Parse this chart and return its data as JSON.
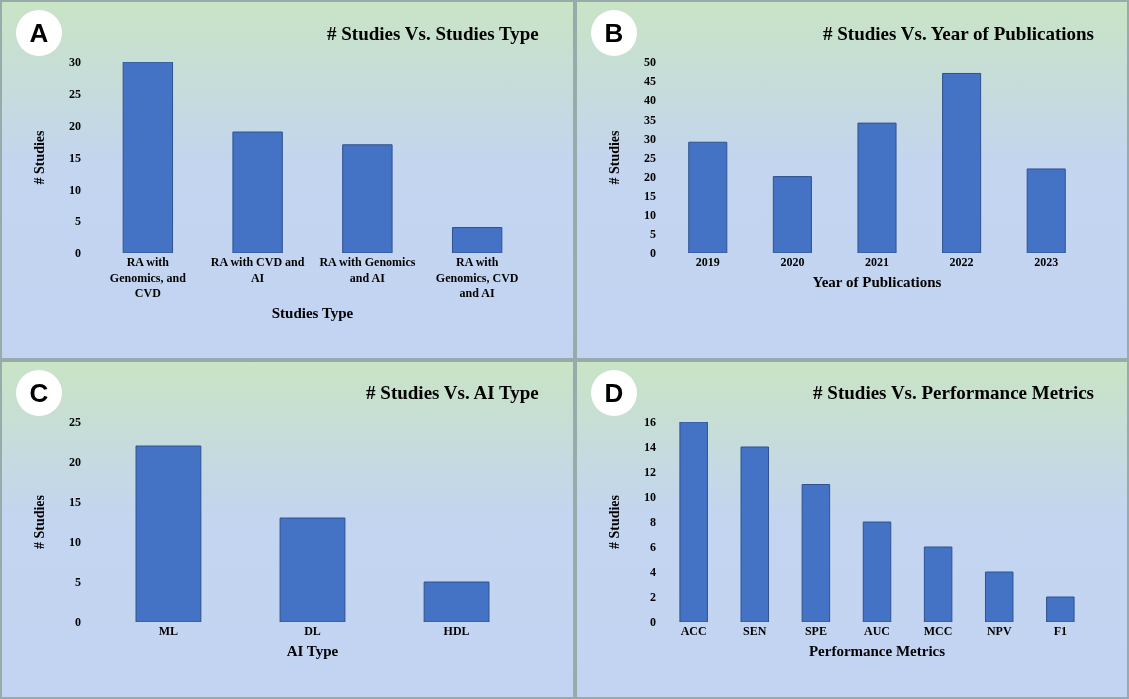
{
  "chart_data": [
    {
      "type": "bar",
      "title": "# Studies Vs. Studies Type",
      "xlabel": "Studies Type",
      "ylabel": "# Studies",
      "categories": [
        "RA with Genomics, and CVD",
        "RA with CVD and AI",
        "RA with Genomics and AI",
        "RA with Genomics, CVD and AI"
      ],
      "values": [
        30,
        19,
        17,
        4
      ],
      "color": "#4472c4",
      "ylim": [
        0,
        30
      ],
      "yticks": [
        0,
        5,
        10,
        15,
        20,
        25,
        30
      ],
      "annotations": [
        "A"
      ]
    },
    {
      "type": "bar",
      "title": "# Studies Vs. Year of Publications",
      "xlabel": "Year of Publications",
      "ylabel": "# Studies",
      "categories": [
        "2019",
        "2020",
        "2021",
        "2022",
        "2023"
      ],
      "values": [
        29,
        20,
        34,
        47,
        22
      ],
      "color": "#4472c4",
      "ylim": [
        0,
        50
      ],
      "yticks": [
        0,
        5,
        10,
        15,
        20,
        25,
        30,
        35,
        40,
        45,
        50
      ],
      "annotations": [
        "B"
      ]
    },
    {
      "type": "bar",
      "title": "# Studies Vs. AI Type",
      "xlabel": "AI Type",
      "ylabel": "# Studies",
      "categories": [
        "ML",
        "DL",
        "HDL"
      ],
      "values": [
        22,
        13,
        5
      ],
      "color": "#4472c4",
      "ylim": [
        0,
        25
      ],
      "yticks": [
        0,
        5,
        10,
        15,
        20,
        25
      ],
      "annotations": [
        "C"
      ]
    },
    {
      "type": "bar",
      "title": "# Studies Vs. Performance Metrics",
      "xlabel": "Performance Metrics",
      "ylabel": "# Studies",
      "categories": [
        "ACC",
        "SEN",
        "SPE",
        "AUC",
        "MCC",
        "NPV",
        "F1"
      ],
      "values": [
        16,
        14,
        11,
        8,
        6,
        4,
        2
      ],
      "color": "#4472c4",
      "ylim": [
        0,
        16
      ],
      "yticks": [
        0,
        2,
        4,
        6,
        8,
        10,
        12,
        14,
        16
      ],
      "annotations": [
        "D"
      ]
    }
  ]
}
